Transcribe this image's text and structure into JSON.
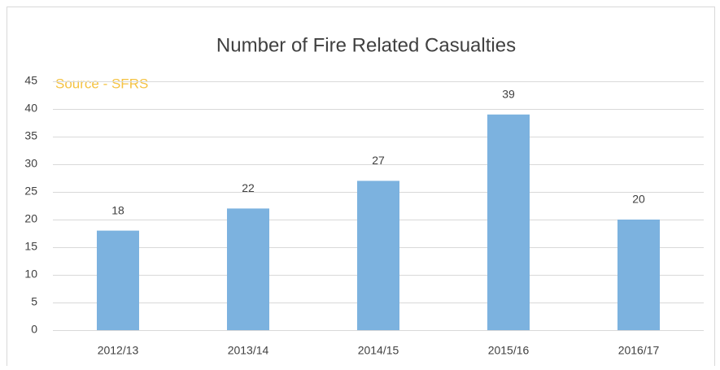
{
  "chart_data": {
    "type": "bar",
    "title": "Number of Fire Related Casualties",
    "annotation": "Source - SFRS",
    "categories": [
      "2012/13",
      "2013/14",
      "2014/15",
      "2015/16",
      "2016/17"
    ],
    "values": [
      18,
      22,
      27,
      39,
      20
    ],
    "color": "#7cb2df",
    "ylim": [
      0,
      45
    ],
    "yticks": [
      0,
      5,
      10,
      15,
      20,
      25,
      30,
      35,
      40,
      45
    ],
    "grid": true
  }
}
